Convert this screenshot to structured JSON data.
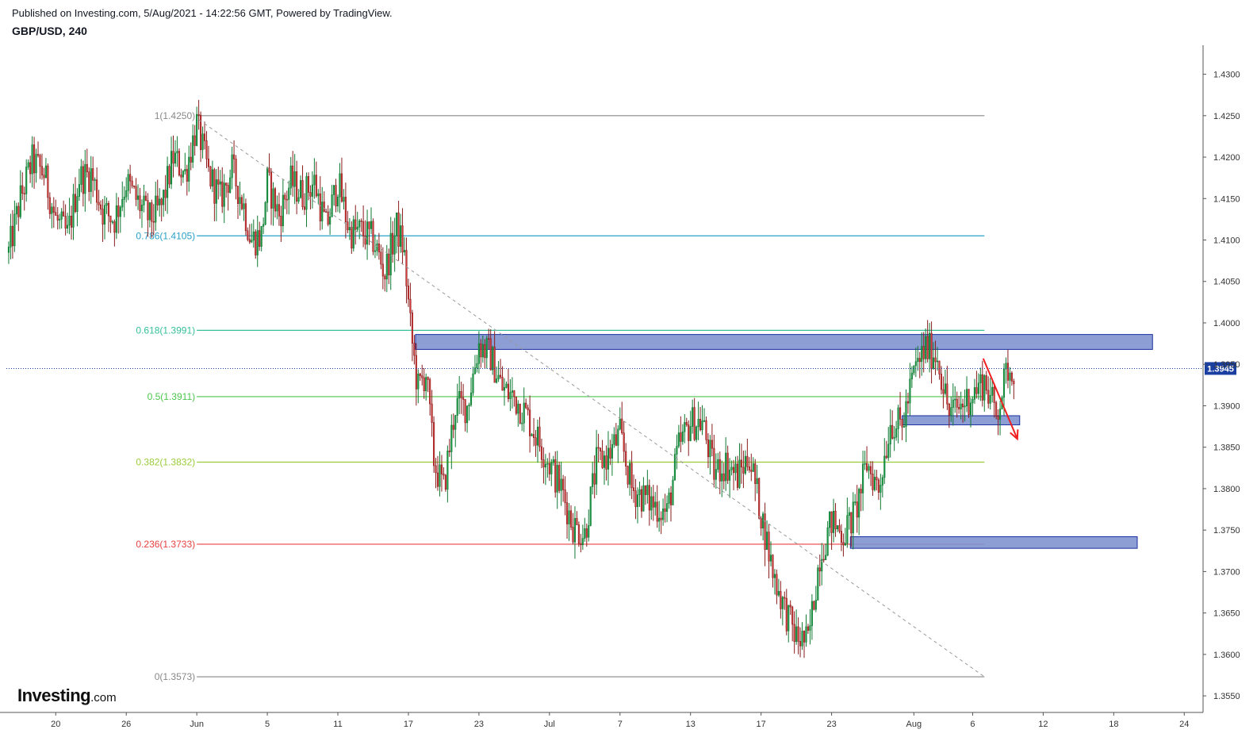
{
  "header": {
    "published": "Published on Investing.com, 5/Aug/2021 - 14:22:56 GMT, Powered by TradingView.",
    "symbol": "GBP/USD, 240"
  },
  "logo": {
    "main": "Investing",
    "suffix": ".com"
  },
  "chart_data": {
    "type": "candlestick",
    "title": "GBP/USD, 240",
    "ylim": [
      1.353,
      1.4335
    ],
    "y_ticks": [
      "1.4300",
      "1.4250",
      "1.4200",
      "1.4150",
      "1.4100",
      "1.4050",
      "1.4000",
      "1.3950",
      "1.3900",
      "1.3850",
      "1.3800",
      "1.3750",
      "1.3700",
      "1.3650",
      "1.3600",
      "1.3550"
    ],
    "x_ticks": [
      {
        "label": "20",
        "day": -12
      },
      {
        "label": "26",
        "day": -6
      },
      {
        "label": "Jun",
        "day": 0
      },
      {
        "label": "5",
        "day": 6
      },
      {
        "label": "11",
        "day": 12
      },
      {
        "label": "17",
        "day": 18
      },
      {
        "label": "23",
        "day": 24
      },
      {
        "label": "Jul",
        "day": 30
      },
      {
        "label": "7",
        "day": 36
      },
      {
        "label": "13",
        "day": 42
      },
      {
        "label": "17",
        "day": 48
      },
      {
        "label": "23",
        "day": 54
      },
      {
        "label": "Aug",
        "day": 61
      },
      {
        "label": "6",
        "day": 66
      },
      {
        "label": "12",
        "day": 72
      },
      {
        "label": "18",
        "day": 78
      },
      {
        "label": "24",
        "day": 84
      }
    ],
    "x_range_days": [
      -16.2,
      85.6
    ],
    "last_price": "1.3945",
    "last_price_value": 1.3945,
    "colors": {
      "up": "#26a69a",
      "down": "#ef5350",
      "up_fill": "#1e9e4a",
      "down_fill": "#e04040",
      "zone": "#7f93cf",
      "zone_border": "#1a2fa0",
      "arrow": "#f02020",
      "price_line": "#1a3fa0"
    },
    "fib_levels": [
      {
        "label": "1(1.4250)",
        "value": 1.425,
        "color": "#888888"
      },
      {
        "label": "0.786(1.4105)",
        "value": 1.4105,
        "color": "#29a0c8"
      },
      {
        "label": "0.618(1.3991)",
        "value": 1.3991,
        "color": "#35c09a"
      },
      {
        "label": "0.5(1.3911)",
        "value": 1.3911,
        "color": "#4cc64c"
      },
      {
        "label": "0.382(1.3832)",
        "value": 1.3832,
        "color": "#9bcc3a"
      },
      {
        "label": "0.236(1.3733)",
        "value": 1.3733,
        "color": "#e84040"
      },
      {
        "label": "0(1.3573)",
        "value": 1.3573,
        "color": "#888888"
      }
    ],
    "fib_x_range_days": [
      0,
      67.0
    ],
    "trendline": {
      "from": {
        "day": 0.2,
        "price": 1.4245
      },
      "to": {
        "day": 67.0,
        "price": 1.3573
      }
    },
    "zones": [
      {
        "day_from": 18.6,
        "day_to": 81.3,
        "price_top": 1.3986,
        "price_bottom": 1.3968
      },
      {
        "day_from": 60.0,
        "day_to": 70.0,
        "price_top": 1.3888,
        "price_bottom": 1.3877
      },
      {
        "day_from": 55.6,
        "day_to": 80.0,
        "price_top": 1.3742,
        "price_bottom": 1.3728
      }
    ],
    "arrow": {
      "from": {
        "day": 66.9,
        "price": 1.3957
      },
      "to": {
        "day": 69.8,
        "price": 1.386
      }
    },
    "price_anchors": [
      {
        "day": -16,
        "price": 1.4085
      },
      {
        "day": -15,
        "price": 1.415
      },
      {
        "day": -14,
        "price": 1.4195
      },
      {
        "day": -13,
        "price": 1.418
      },
      {
        "day": -12,
        "price": 1.4125
      },
      {
        "day": -11,
        "price": 1.4105
      },
      {
        "day": -10,
        "price": 1.4175
      },
      {
        "day": -9,
        "price": 1.418
      },
      {
        "day": -8,
        "price": 1.4135
      },
      {
        "day": -7,
        "price": 1.4125
      },
      {
        "day": -6,
        "price": 1.417
      },
      {
        "day": -5,
        "price": 1.4145
      },
      {
        "day": -4,
        "price": 1.4125
      },
      {
        "day": -3,
        "price": 1.414
      },
      {
        "day": -2,
        "price": 1.42
      },
      {
        "day": -1,
        "price": 1.418
      },
      {
        "day": 0,
        "price": 1.424
      },
      {
        "day": 1,
        "price": 1.418
      },
      {
        "day": 2,
        "price": 1.415
      },
      {
        "day": 3,
        "price": 1.4185
      },
      {
        "day": 4,
        "price": 1.414
      },
      {
        "day": 4.6,
        "price": 1.41
      },
      {
        "day": 5.5,
        "price": 1.4105
      },
      {
        "day": 6,
        "price": 1.417
      },
      {
        "day": 7,
        "price": 1.413
      },
      {
        "day": 8,
        "price": 1.417
      },
      {
        "day": 9,
        "price": 1.4155
      },
      {
        "day": 10,
        "price": 1.417
      },
      {
        "day": 11,
        "price": 1.4115
      },
      {
        "day": 12,
        "price": 1.417
      },
      {
        "day": 13,
        "price": 1.411
      },
      {
        "day": 14,
        "price": 1.411
      },
      {
        "day": 15,
        "price": 1.41
      },
      {
        "day": 16,
        "price": 1.406
      },
      {
        "day": 17,
        "price": 1.4115
      },
      {
        "day": 17.6,
        "price": 1.409
      },
      {
        "day": 18.2,
        "price": 1.399
      },
      {
        "day": 18.8,
        "price": 1.392
      },
      {
        "day": 19.5,
        "price": 1.394
      },
      {
        "day": 20.2,
        "price": 1.383
      },
      {
        "day": 21,
        "price": 1.38
      },
      {
        "day": 22,
        "price": 1.39
      },
      {
        "day": 23,
        "price": 1.39
      },
      {
        "day": 24,
        "price": 1.3975
      },
      {
        "day": 25,
        "price": 1.396
      },
      {
        "day": 26,
        "price": 1.392
      },
      {
        "day": 27,
        "price": 1.391
      },
      {
        "day": 28,
        "price": 1.389
      },
      {
        "day": 29,
        "price": 1.386
      },
      {
        "day": 30,
        "price": 1.383
      },
      {
        "day": 31,
        "price": 1.38
      },
      {
        "day": 32,
        "price": 1.3755
      },
      {
        "day": 33,
        "price": 1.3745
      },
      {
        "day": 34,
        "price": 1.383
      },
      {
        "day": 35,
        "price": 1.384
      },
      {
        "day": 36,
        "price": 1.3865
      },
      {
        "day": 37,
        "price": 1.38
      },
      {
        "day": 38,
        "price": 1.379
      },
      {
        "day": 39,
        "price": 1.378
      },
      {
        "day": 40,
        "price": 1.377
      },
      {
        "day": 41,
        "price": 1.385
      },
      {
        "day": 42,
        "price": 1.388
      },
      {
        "day": 43,
        "price": 1.388
      },
      {
        "day": 44,
        "price": 1.382
      },
      {
        "day": 45,
        "price": 1.383
      },
      {
        "day": 46,
        "price": 1.3815
      },
      {
        "day": 47,
        "price": 1.384
      },
      {
        "day": 48,
        "price": 1.377
      },
      {
        "day": 49,
        "price": 1.37
      },
      {
        "day": 50,
        "price": 1.3655
      },
      {
        "day": 51,
        "price": 1.362
      },
      {
        "day": 52,
        "price": 1.3615
      },
      {
        "day": 53,
        "price": 1.372
      },
      {
        "day": 54,
        "price": 1.376
      },
      {
        "day": 55,
        "price": 1.3745
      },
      {
        "day": 56,
        "price": 1.377
      },
      {
        "day": 57,
        "price": 1.383
      },
      {
        "day": 58,
        "price": 1.38
      },
      {
        "day": 59,
        "price": 1.388
      },
      {
        "day": 60,
        "price": 1.3875
      },
      {
        "day": 61,
        "price": 1.394
      },
      {
        "day": 62,
        "price": 1.397
      },
      {
        "day": 63,
        "price": 1.396
      },
      {
        "day": 64,
        "price": 1.389
      },
      {
        "day": 65,
        "price": 1.39
      },
      {
        "day": 66,
        "price": 1.3915
      },
      {
        "day": 67,
        "price": 1.393
      },
      {
        "day": 68,
        "price": 1.389
      },
      {
        "day": 69,
        "price": 1.3945
      }
    ],
    "candles_per_day": 6,
    "series_end_day": 69.5
  }
}
